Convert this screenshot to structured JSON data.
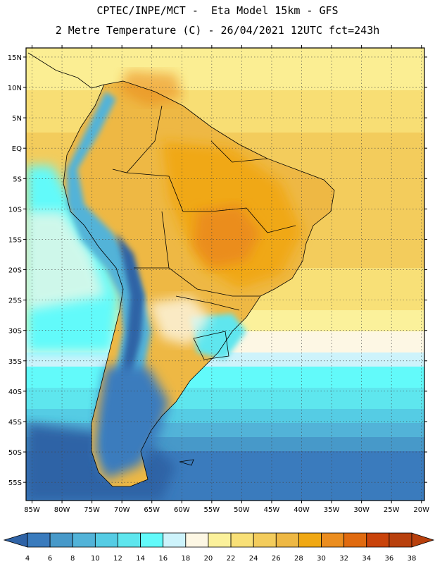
{
  "header": {
    "line1": "CPTEC/INPE/MCT -  Eta Model 15km - GFS",
    "line2": "2 Metre Temperature (C) - 26/04/2021 12UTC fct=243h"
  },
  "axes": {
    "lat_labels": [
      "15N",
      "10N",
      "5N",
      "EQ",
      "5S",
      "10S",
      "15S",
      "20S",
      "25S",
      "30S",
      "35S",
      "40S",
      "45S",
      "50S",
      "55S"
    ],
    "lon_labels": [
      "85W",
      "80W",
      "75W",
      "70W",
      "65W",
      "60W",
      "55W",
      "50W",
      "45W",
      "40W",
      "35W",
      "30W",
      "25W",
      "20W"
    ],
    "lat_values": [
      15,
      10,
      5,
      0,
      -5,
      -10,
      -15,
      -20,
      -25,
      -30,
      -35,
      -40,
      -45,
      -50,
      -55
    ],
    "lon_values": [
      -85,
      -80,
      -75,
      -70,
      -65,
      -60,
      -55,
      -50,
      -45,
      -40,
      -35,
      -30,
      -25,
      -20
    ],
    "lat_range": [
      -58,
      16.5
    ],
    "lon_range": [
      -86,
      -19.5
    ]
  },
  "legend": {
    "labels": [
      "4",
      "6",
      "8",
      "10",
      "12",
      "14",
      "16",
      "18",
      "20",
      "22",
      "24",
      "26",
      "28",
      "30",
      "32",
      "34",
      "36",
      "38"
    ],
    "colors": [
      "#2f63a6",
      "#3a7bbd",
      "#4799c9",
      "#52b3d8",
      "#55cce4",
      "#5ee6ee",
      "#62fafa",
      "#cdf3fb",
      "#fdf7e4",
      "#fbf19b",
      "#f8e077",
      "#f3cc5c",
      "#eeb844",
      "#f0a813",
      "#eb8d1f",
      "#e06a0f",
      "#c9430a",
      "#b8400d"
    ]
  }
}
